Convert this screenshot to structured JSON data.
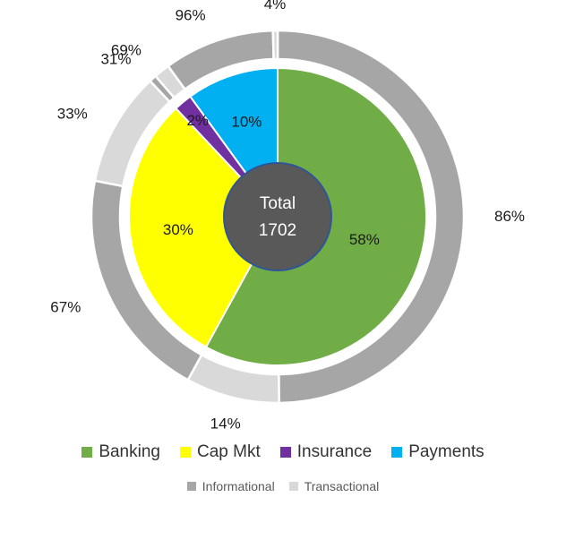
{
  "chart_data": {
    "type": "pie",
    "center_label": {
      "title": "Total",
      "value": "1702"
    },
    "inner_ring": {
      "categories": [
        "Banking",
        "Cap Mkt",
        "Insurance",
        "Payments"
      ],
      "values": [
        58,
        30,
        2,
        10
      ],
      "labels": [
        "58%",
        "30%",
        "2%",
        "10%"
      ],
      "colors": [
        "#70AD47",
        "#FFFF00",
        "#7030A0",
        "#00B0F0"
      ]
    },
    "outer_ring": {
      "series": [
        "Informational",
        "Transactional"
      ],
      "colors": [
        "#A6A6A6",
        "#D9D9D9"
      ],
      "segments": [
        {
          "category": "Banking",
          "type": "Informational",
          "value": 86,
          "label": "86%"
        },
        {
          "category": "Banking",
          "type": "Transactional",
          "value": 14,
          "label": "14%"
        },
        {
          "category": "Cap Mkt",
          "type": "Informational",
          "value": 67,
          "label": "67%"
        },
        {
          "category": "Cap Mkt",
          "type": "Transactional",
          "value": 33,
          "label": "33%"
        },
        {
          "category": "Insurance",
          "type": "Informational",
          "value": 31,
          "label": "31%"
        },
        {
          "category": "Insurance",
          "type": "Transactional",
          "value": 69,
          "label": "69%"
        },
        {
          "category": "Payments",
          "type": "Informational",
          "value": 96,
          "label": "96%"
        },
        {
          "category": "Payments",
          "type": "Transactional",
          "value": 4,
          "label": "4%"
        }
      ]
    },
    "legend": {
      "main": [
        {
          "label": "Banking",
          "color": "#70AD47"
        },
        {
          "label": "Cap Mkt",
          "color": "#FFFF00"
        },
        {
          "label": "Insurance",
          "color": "#7030A0"
        },
        {
          "label": "Payments",
          "color": "#00B0F0"
        }
      ],
      "sub": [
        {
          "label": "Informational",
          "color": "#A6A6A6"
        },
        {
          "label": "Transactional",
          "color": "#D9D9D9"
        }
      ],
      "placement": "bottom"
    },
    "center_color": "#595959"
  }
}
